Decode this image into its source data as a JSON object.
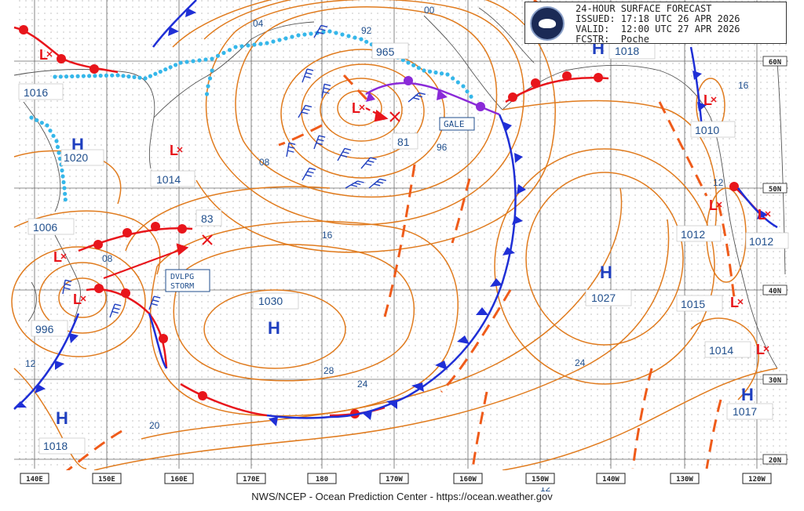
{
  "header": {
    "line1": "24-HOUR SURFACE FORECAST",
    "line2": "ISSUED: 17:18 UTC 26 APR 2026",
    "line3": "VALID:  12:00 UTC 27 APR 2026",
    "line4": "FCSTR:  Poche"
  },
  "footer": "NWS/NCEP - Ocean Prediction Center - https://ocean.weather.gov",
  "highs": [
    {
      "letter": "H",
      "value": "1018",
      "where": "gulf-of-alaska"
    },
    {
      "letter": "H",
      "value": "1020",
      "where": "okhotsk"
    },
    {
      "letter": "H",
      "value": "1030",
      "where": "central-pacific"
    },
    {
      "letter": "H",
      "value": "1027",
      "where": "northeast-pacific"
    },
    {
      "letter": "H",
      "value": "1018",
      "where": "southwest"
    },
    {
      "letter": "H",
      "value": "1017",
      "where": "southeast"
    }
  ],
  "lows": [
    {
      "value": "965",
      "where": "bering-sea"
    },
    {
      "value": "1014",
      "where": "kamchatka"
    },
    {
      "value": "1016",
      "where": "siberia"
    },
    {
      "value": "1006",
      "where": "sakhalin"
    },
    {
      "value": "996",
      "where": "japan"
    },
    {
      "value": "1010",
      "where": "bc-coast"
    },
    {
      "value": "1012",
      "where": "washington-offshore"
    },
    {
      "value": "1012",
      "where": "washington-coast"
    },
    {
      "value": "1015",
      "where": "california-north"
    },
    {
      "value": "1014",
      "where": "california-south"
    }
  ],
  "forecast_positions": [
    {
      "value": "81",
      "where": "bering-low-future"
    },
    {
      "value": "83",
      "where": "dvlpg-storm-future"
    }
  ],
  "warnings": [
    {
      "label": "GALE"
    },
    {
      "label": "DVLPG STORM"
    }
  ],
  "isobar_labels": [
    "92",
    "96",
    "00",
    "04",
    "08",
    "08",
    "12",
    "12",
    "12",
    "16",
    "16",
    "20",
    "24",
    "24",
    "28"
  ],
  "longitudes": [
    "140E",
    "150E",
    "160E",
    "170E",
    "180",
    "170W",
    "160W",
    "150W",
    "140W",
    "130W",
    "120W"
  ],
  "latitudes": [
    "60N",
    "50N",
    "40N",
    "30N",
    "20N"
  ],
  "colors": {
    "isobar": "#e07b1e",
    "warm_front": "#e8151b",
    "cold_front": "#1f2fd6",
    "occluded_front": "#8a2ad8",
    "trough": "#ef5b1a",
    "ice": "#35b7ea",
    "label": "#1f4e8c"
  }
}
